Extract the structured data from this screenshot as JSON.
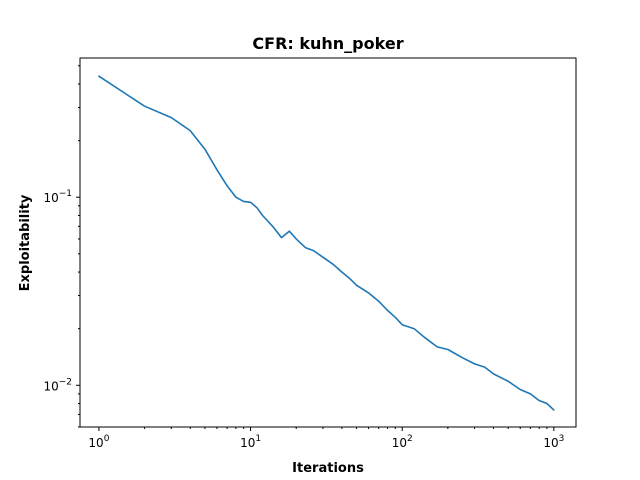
{
  "chart_data": {
    "type": "line",
    "title": "CFR: kuhn_poker",
    "xlabel": "Iterations",
    "ylabel": "Exploitability",
    "xscale": "log",
    "yscale": "log",
    "xlim": [
      0.75,
      1400
    ],
    "ylim": [
      0.006,
      0.55
    ],
    "grid": false,
    "line_color": "#1f77b4",
    "x_ticks": [
      {
        "base": "10",
        "exp": "0"
      },
      {
        "base": "10",
        "exp": "1"
      },
      {
        "base": "10",
        "exp": "2"
      },
      {
        "base": "10",
        "exp": "3"
      }
    ],
    "y_ticks": [
      {
        "base": "10",
        "exp": "−1"
      },
      {
        "base": "10",
        "exp": "−2"
      }
    ],
    "series": [
      {
        "x": [
          1,
          2,
          3,
          4,
          5,
          6,
          7,
          8,
          9,
          10,
          11,
          12,
          14,
          16,
          18,
          20,
          23,
          26,
          30,
          35,
          40,
          45,
          50,
          60,
          70,
          80,
          90,
          100,
          120,
          140,
          170,
          200,
          250,
          300,
          350,
          400,
          500,
          600,
          700,
          800,
          900,
          1000
        ],
        "y": [
          0.44,
          0.305,
          0.265,
          0.226,
          0.18,
          0.14,
          0.115,
          0.1,
          0.095,
          0.094,
          0.088,
          0.08,
          0.07,
          0.061,
          0.066,
          0.06,
          0.054,
          0.052,
          0.048,
          0.044,
          0.04,
          0.037,
          0.034,
          0.031,
          0.028,
          0.025,
          0.023,
          0.021,
          0.02,
          0.018,
          0.016,
          0.0155,
          0.014,
          0.013,
          0.0125,
          0.0115,
          0.0105,
          0.0095,
          0.009,
          0.0083,
          0.008,
          0.0074
        ]
      }
    ]
  }
}
